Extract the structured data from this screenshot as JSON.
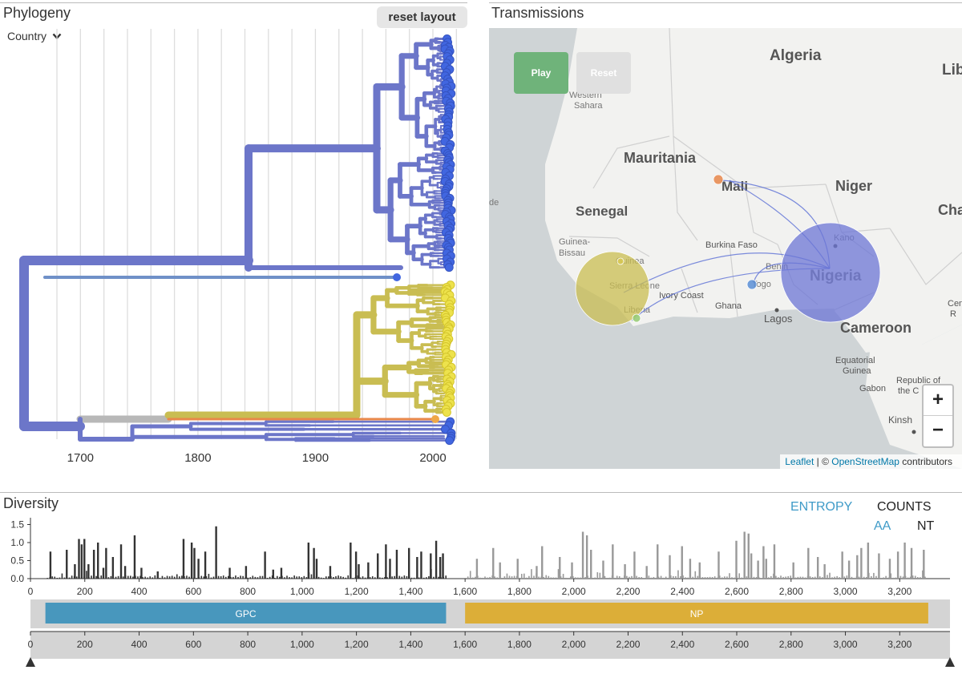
{
  "phylogeny": {
    "title": "Phylogeny",
    "reset_label": "reset layout",
    "color_by": "Country",
    "x_ticks": [
      "1700",
      "1800",
      "1900",
      "2000"
    ],
    "x_tick_values": [
      1700,
      1800,
      1900,
      2000
    ],
    "x_range": [
      1652,
      2020
    ],
    "colors": {
      "nigeria": "#6c76c9",
      "sierra_leone": "#c9bd52",
      "mali": "#e8874a",
      "unknown": "#b8b8b8",
      "tip_blue": "#4166e0",
      "tip_yellow": "#ede24c"
    }
  },
  "transmissions": {
    "title": "Transmissions",
    "play_label": "Play",
    "reset_label": "Reset",
    "zoom_in": "+",
    "zoom_out": "−",
    "attribution_leaflet": "Leaflet",
    "attribution_sep": " | © ",
    "attribution_osm": "OpenStreetMap",
    "attribution_rest": " contributors",
    "labels": {
      "algeria": "Algeria",
      "libya": "Libya",
      "western_sahara_1": "Western",
      "western_sahara_2": "Sahara",
      "mauritania": "Mauritania",
      "mali": "Mali",
      "niger": "Niger",
      "chad": "Cha",
      "senegal": "Senegal",
      "guinea_bissau_1": "Guinea-",
      "guinea_bissau_2": "Bissau",
      "burkina": "Burkina Faso",
      "kano": "Kano",
      "guinea": "Guinea",
      "sierra_leone": "Sierra Leone",
      "benin": "Benin",
      "togo": "Togo",
      "nigeria": "Nigeria",
      "ivory_coast": "Ivory Coast",
      "ghana": "Ghana",
      "liberia": "Liberia",
      "lagos": "Lagos",
      "cameroon": "Cameroon",
      "central_1": "Cent",
      "central_2": "R",
      "eq_guinea_1": "Equatorial",
      "eq_guinea_2": "Guinea",
      "gabon": "Gabon",
      "republic_1": "Republic of",
      "republic_2": "the C",
      "kinsh": "Kinsh",
      "edge_de": "de"
    },
    "demes": [
      {
        "name": "Nigeria",
        "color": "#6c76d6"
      },
      {
        "name": "Sierra Leone",
        "color": "#c9bd52"
      },
      {
        "name": "Mali",
        "color": "#e8874a"
      },
      {
        "name": "Togo",
        "color": "#5a8fd6"
      },
      {
        "name": "Liberia",
        "color": "#8ec86a"
      },
      {
        "name": "Guinea",
        "color": "#d8c850"
      }
    ],
    "colors": {
      "play": "#6fb37a",
      "reset": "#e0e0e0",
      "land": "#f2f2f0",
      "sea": "#cfd4d6",
      "border": "#d0d0d0",
      "arc": "#5b6fd6"
    }
  },
  "diversity": {
    "title": "Diversity",
    "entropy_label": "ENTROPY",
    "counts_label": "COUNTS",
    "aa_label": "AA",
    "nt_label": "NT",
    "y_ticks": [
      "1.5",
      "1.0",
      "0.5",
      "0.0"
    ],
    "y_tick_values": [
      1.5,
      1.0,
      0.5,
      0.0
    ],
    "x_ticks": [
      "0",
      "200",
      "400",
      "600",
      "800",
      "1,000",
      "1,200",
      "1,400",
      "1,600",
      "1,800",
      "2,000",
      "2,200",
      "2,400",
      "2,600",
      "2,800",
      "3,000",
      "3,200"
    ],
    "x_tick_values": [
      0,
      200,
      400,
      600,
      800,
      1000,
      1200,
      1400,
      1600,
      1800,
      2000,
      2200,
      2400,
      2600,
      2800,
      3000,
      3200
    ],
    "x_range": [
      0,
      3385
    ],
    "genes": [
      {
        "name": "GPC",
        "start": 55,
        "end": 1530,
        "color": "#4897bd"
      },
      {
        "name": "NP",
        "start": 1600,
        "end": 3305,
        "color": "#dcae38"
      }
    ],
    "colors": {
      "entropy": "#3f9bc8",
      "bar_dark": "#333333",
      "bar_light": "#999999",
      "track": "#d4d4d4"
    }
  },
  "chart_data": {
    "type": "bar",
    "title": "Diversity",
    "xlabel": "",
    "ylabel": "entropy",
    "ylim": [
      0,
      1.6
    ],
    "xlim": [
      0,
      3385
    ],
    "positions": [
      70,
      130,
      160,
      175,
      185,
      195,
      210,
      230,
      245,
      265,
      275,
      300,
      330,
      345,
      380,
      405,
      465,
      560,
      590,
      600,
      615,
      640,
      680,
      730,
      790,
      860,
      890,
      920,
      1020,
      1040,
      1050,
      1100,
      1175,
      1195,
      1205,
      1240,
      1275,
      1305,
      1320,
      1345,
      1390,
      1420,
      1435,
      1470,
      1490,
      1505,
      1515,
      1640,
      1700,
      1725,
      1790,
      1860,
      1880,
      1945,
      1990,
      2030,
      2045,
      2060,
      2105,
      2140,
      2185,
      2220,
      2265,
      2305,
      2350,
      2395,
      2425,
      2460,
      2530,
      2595,
      2625,
      2640,
      2650,
      2675,
      2695,
      2705,
      2735,
      2805,
      2860,
      2895,
      2920,
      2985,
      3010,
      3040,
      3055,
      3080,
      3120,
      3160,
      3190,
      3215,
      3240,
      3285
    ],
    "values": [
      0.75,
      0.8,
      0.4,
      1.1,
      0.95,
      1.1,
      0.4,
      0.8,
      1.0,
      0.3,
      0.85,
      0.6,
      0.95,
      0.35,
      1.2,
      0.3,
      0.2,
      1.1,
      1.0,
      0.85,
      0.55,
      0.75,
      1.45,
      0.3,
      0.35,
      0.75,
      0.25,
      0.3,
      1.0,
      0.85,
      0.55,
      0.35,
      1.0,
      0.75,
      0.4,
      0.45,
      0.7,
      0.95,
      0.55,
      0.8,
      0.85,
      0.6,
      0.75,
      0.7,
      1.05,
      0.6,
      0.7,
      0.55,
      0.85,
      0.45,
      0.55,
      0.35,
      0.9,
      0.6,
      0.45,
      1.3,
      1.2,
      0.8,
      0.5,
      0.95,
      0.4,
      0.75,
      0.35,
      0.95,
      0.65,
      0.9,
      0.55,
      0.45,
      0.75,
      1.05,
      1.3,
      1.25,
      0.7,
      0.5,
      0.9,
      0.55,
      0.95,
      0.45,
      0.85,
      0.6,
      0.4,
      0.75,
      0.5,
      0.65,
      0.85,
      1.0,
      0.7,
      0.55,
      0.75,
      1.0,
      0.85,
      0.8
    ]
  }
}
